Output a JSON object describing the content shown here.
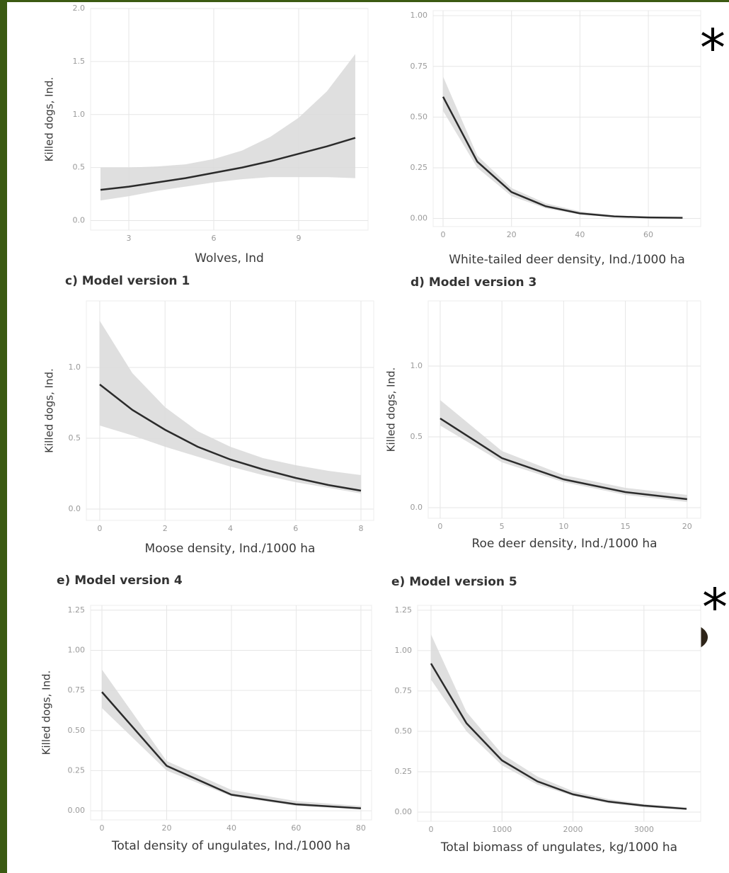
{
  "chart_data": [
    {
      "type": "line",
      "xlabel": "Wolves, Ind",
      "ylabel": "Killed dogs, Ind.",
      "x": [
        2,
        3,
        4,
        5,
        6,
        7,
        8,
        9,
        10,
        11
      ],
      "values": [
        0.29,
        0.32,
        0.36,
        0.4,
        0.45,
        0.5,
        0.56,
        0.63,
        0.7,
        0.78
      ],
      "lower": [
        0.19,
        0.23,
        0.28,
        0.32,
        0.36,
        0.39,
        0.41,
        0.41,
        0.41,
        0.4
      ],
      "upper": [
        0.5,
        0.5,
        0.51,
        0.53,
        0.58,
        0.66,
        0.79,
        0.97,
        1.22,
        1.57
      ],
      "xlim": [
        1.65,
        11.45
      ],
      "ylim": [
        -0.09,
        2.0
      ],
      "xticks": [
        3,
        6,
        9
      ],
      "yticks": [
        {
          "value": 0,
          "label": "0.0"
        },
        0.5,
        {
          "value": 1,
          "label": "1.0"
        },
        1.5,
        {
          "value": 2,
          "label": "2.0"
        }
      ],
      "grid": true,
      "color": "#2b2b2b",
      "band_color": "#d9d9d9"
    },
    {
      "type": "line",
      "xlabel": "White-tailed deer density, Ind./1000 ha",
      "annotation": "*",
      "x": [
        0,
        10,
        20,
        30,
        40,
        50,
        60,
        70
      ],
      "values": [
        0.6,
        0.28,
        0.13,
        0.06,
        0.025,
        0.01,
        0.005,
        0.003
      ],
      "lower": [
        0.53,
        0.25,
        0.11,
        0.05,
        0.02,
        0.008,
        0.003,
        0.001
      ],
      "upper": [
        0.7,
        0.31,
        0.15,
        0.075,
        0.035,
        0.015,
        0.008,
        0.005
      ],
      "xlim": [
        -2.9,
        75.3
      ],
      "ylim": [
        -0.04,
        1.025
      ],
      "xticks": [
        0,
        20,
        40,
        60
      ],
      "yticks": [
        {
          "value": 0,
          "label": "0.00"
        },
        0.25,
        {
          "value": 0.5,
          "label": "0.50"
        },
        0.75,
        {
          "value": 1,
          "label": "1.00"
        }
      ],
      "grid": true,
      "color": "#2b2b2b",
      "band_color": "#d9d9d9"
    },
    {
      "type": "line",
      "title": "c) Model version 1",
      "xlabel": "Moose density, Ind./1000 ha",
      "ylabel": "Killed dogs, Ind.",
      "x": [
        0,
        1,
        2,
        3,
        4,
        5,
        6,
        7,
        8
      ],
      "values": [
        0.88,
        0.7,
        0.56,
        0.44,
        0.35,
        0.28,
        0.22,
        0.17,
        0.13
      ],
      "lower": [
        0.59,
        0.52,
        0.44,
        0.37,
        0.3,
        0.24,
        0.19,
        0.15,
        0.11
      ],
      "upper": [
        1.33,
        0.96,
        0.72,
        0.55,
        0.44,
        0.36,
        0.31,
        0.27,
        0.24
      ],
      "xlim": [
        -0.41,
        8.39
      ],
      "ylim": [
        -0.08,
        1.47
      ],
      "xticks": [
        0,
        2,
        4,
        6,
        8
      ],
      "yticks": [
        {
          "value": 0,
          "label": "0.0"
        },
        0.5,
        {
          "value": 1,
          "label": "1.0"
        }
      ],
      "grid": true,
      "color": "#2b2b2b",
      "band_color": "#d9d9d9"
    },
    {
      "type": "line",
      "title": "d) Model version 3",
      "xlabel": "Roe deer density, Ind./1000 ha",
      "ylabel": "Killed dogs, Ind.",
      "x": [
        0,
        5,
        10,
        15,
        20
      ],
      "values": [
        0.63,
        0.35,
        0.2,
        0.11,
        0.06
      ],
      "lower": [
        0.58,
        0.32,
        0.18,
        0.09,
        0.04
      ],
      "upper": [
        0.76,
        0.4,
        0.23,
        0.14,
        0.09
      ],
      "xlim": [
        -0.97,
        21.1
      ],
      "ylim": [
        -0.075,
        1.46
      ],
      "xticks": [
        0,
        5,
        10,
        15,
        20
      ],
      "yticks": [
        {
          "value": 0,
          "label": "0.0"
        },
        0.5,
        {
          "value": 1,
          "label": "1.0"
        }
      ],
      "grid": true,
      "color": "#2b2b2b",
      "band_color": "#d9d9d9"
    },
    {
      "type": "line",
      "title": "e) Model version 4",
      "xlabel": "Total density of ungulates, Ind./1000 ha",
      "ylabel": "Killed dogs, Ind.",
      "x": [
        0,
        20,
        40,
        60,
        80
      ],
      "values": [
        0.74,
        0.28,
        0.1,
        0.04,
        0.015
      ],
      "lower": [
        0.64,
        0.25,
        0.09,
        0.03,
        0.01
      ],
      "upper": [
        0.88,
        0.31,
        0.13,
        0.06,
        0.03
      ],
      "xlim": [
        -3.5,
        83.3
      ],
      "ylim": [
        -0.057,
        1.28
      ],
      "xticks": [
        0,
        20,
        40,
        60,
        80
      ],
      "yticks": [
        {
          "value": 0,
          "label": "0.00"
        },
        0.25,
        {
          "value": 0.5,
          "label": "0.50"
        },
        0.75,
        {
          "value": 1,
          "label": "1.00"
        },
        1.25
      ],
      "grid": true,
      "color": "#2b2b2b",
      "band_color": "#d9d9d9"
    },
    {
      "type": "line",
      "title": "e) Model version 5",
      "xlabel": "Total biomass of ungulates, kg/1000 ha",
      "annotation": "*",
      "x": [
        0,
        500,
        1000,
        1500,
        2000,
        2500,
        3000,
        3600
      ],
      "values": [
        0.92,
        0.55,
        0.32,
        0.19,
        0.11,
        0.065,
        0.04,
        0.02
      ],
      "lower": [
        0.82,
        0.5,
        0.29,
        0.17,
        0.1,
        0.055,
        0.03,
        0.015
      ],
      "upper": [
        1.1,
        0.62,
        0.36,
        0.22,
        0.13,
        0.08,
        0.05,
        0.03
      ],
      "xlim": [
        -189,
        3799
      ],
      "ylim": [
        -0.057,
        1.28
      ],
      "xticks": [
        0,
        1000,
        2000,
        3000
      ],
      "yticks": [
        {
          "value": 0,
          "label": "0.00"
        },
        0.25,
        {
          "value": 0.5,
          "label": "0.50"
        },
        0.75,
        {
          "value": 1,
          "label": "1.00"
        },
        1.25
      ],
      "grid": true,
      "color": "#2b2b2b",
      "band_color": "#d9d9d9"
    }
  ]
}
